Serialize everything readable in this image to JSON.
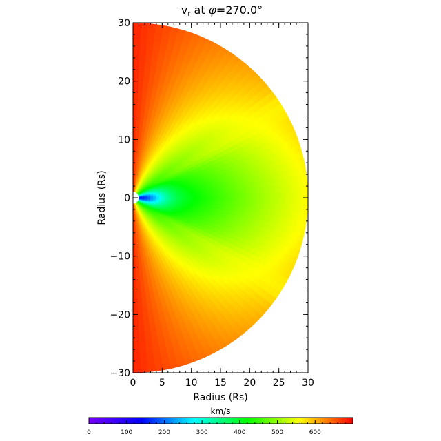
{
  "chart_data": {
    "type": "heatmap",
    "title": "v",
    "title_subscript": "r",
    "title_tail": " at ",
    "title_phi": "φ",
    "title_value": "=270.0°",
    "xlabel": "Radius (Rs)",
    "ylabel": "Radius (Rs)",
    "xlim": [
      0,
      30
    ],
    "ylim": [
      -30,
      30
    ],
    "x_ticks": [
      0,
      5,
      10,
      15,
      20,
      25,
      30
    ],
    "y_ticks": [
      -30,
      -20,
      -10,
      0,
      10,
      20,
      30
    ],
    "x_tick_labels": [
      "0",
      "5",
      "10",
      "15",
      "20",
      "25",
      "30"
    ],
    "y_tick_labels": [
      "−30",
      "−20",
      "−10",
      "0",
      "10",
      "20",
      "30"
    ],
    "domain_shape": "half-disk",
    "disk_radius": 30,
    "inner_boundary_radius": 1,
    "colorbar": {
      "label": "km/s",
      "min": 0,
      "max": 700,
      "ticks": [
        0,
        100,
        200,
        300,
        400,
        500,
        600
      ],
      "tick_labels": [
        "0",
        "100",
        "200",
        "300",
        "400",
        "500",
        "600"
      ],
      "colors": [
        "#7800ff",
        "#0000ff",
        "#00ffff",
        "#00ff00",
        "#ffff00",
        "#ff0000"
      ]
    },
    "approx_field_km_s": {
      "near_inner_boundary_equator": 130,
      "equatorial_near_field": 300,
      "equatorial_mid": 430,
      "equatorial_outer_edge": 560,
      "poles_outer": 680,
      "mid_latitude_bright_band": 560
    }
  }
}
